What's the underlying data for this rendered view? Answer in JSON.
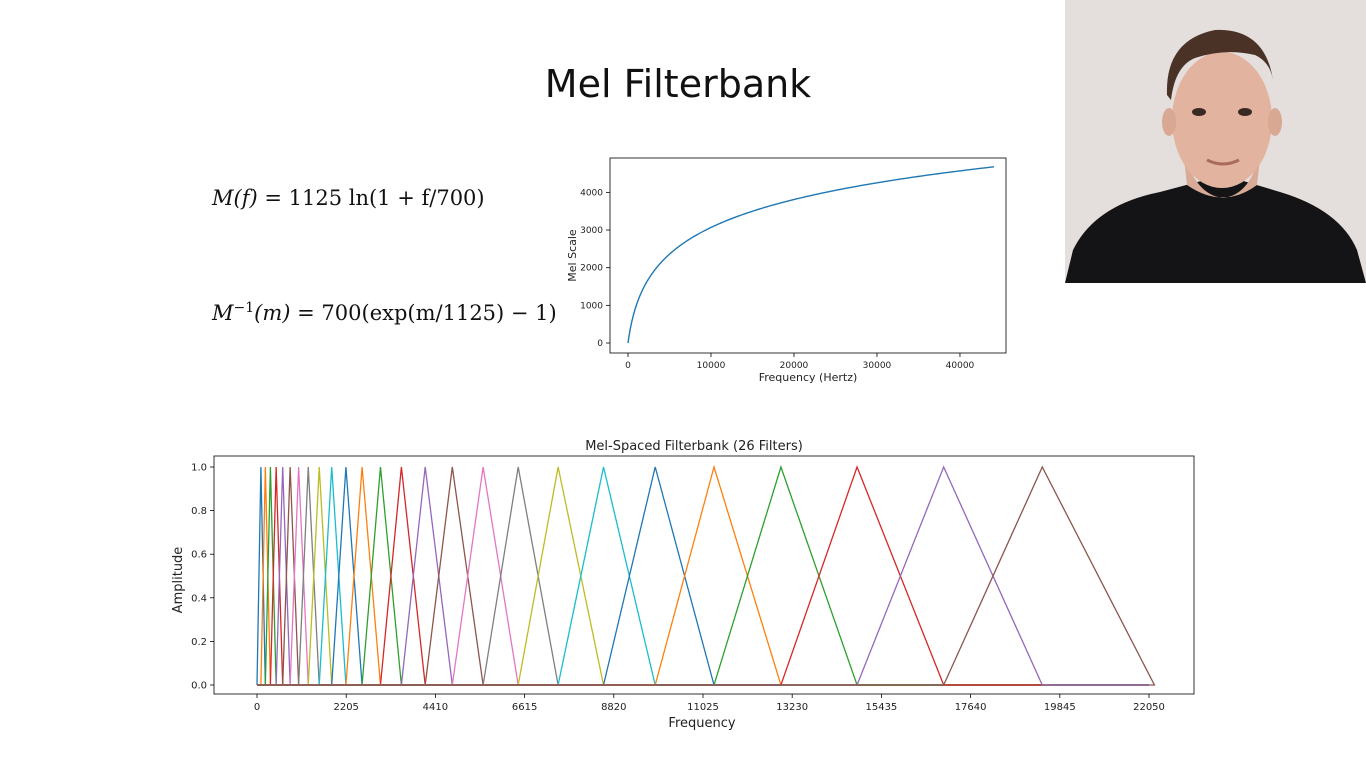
{
  "slide": {
    "title": "Mel Filterbank",
    "formula_mel": {
      "lhs": "M(f)",
      "rhs": "= 1125 ln(1 + f/700)"
    },
    "formula_inverse": {
      "lhs_base": "M",
      "lhs_sup": "−1",
      "lhs_arg": "(m)",
      "rhs": "= 700(exp(m/1125) − 1)"
    }
  },
  "chart_data": [
    {
      "type": "line",
      "title": "",
      "xlabel": "Frequency (Hertz)",
      "ylabel": "Mel Scale",
      "xlim": [
        0,
        44100
      ],
      "ylim": [
        0,
        4700
      ],
      "xticks": [
        "0",
        "10000",
        "20000",
        "30000",
        "40000"
      ],
      "yticks": [
        "0",
        "1000",
        "2000",
        "3000",
        "4000"
      ],
      "series": [
        {
          "color": "#1f77b4",
          "function": "1125*ln(1+f/700)",
          "x": [
            0,
            1000,
            2000,
            3000,
            5000,
            7500,
            10000,
            15000,
            20000,
            25000,
            30000,
            35000,
            40000,
            44100
          ]
        }
      ],
      "grid": false,
      "legend": "none"
    },
    {
      "type": "line",
      "title": "Mel-Spaced Filterbank (26 Filters)",
      "xlabel": "Frequency",
      "ylabel": "Amplitude",
      "xlim": [
        0,
        22050
      ],
      "ylim": [
        0,
        1.0
      ],
      "xticks": [
        "0",
        "2205",
        "4410",
        "6615",
        "8820",
        "11025",
        "13230",
        "15435",
        "17640",
        "19845",
        "22050"
      ],
      "yticks": [
        "0.0",
        "0.2",
        "0.4",
        "0.6",
        "0.8",
        "1.0"
      ],
      "filter_count": 26,
      "mel_range": [
        0,
        3923
      ],
      "colors": [
        "#1f77b4",
        "#ff7f0e",
        "#2ca02c",
        "#d62728",
        "#9467bd",
        "#8c564b",
        "#e377c2",
        "#7f7f7f",
        "#bcbd22",
        "#17becf"
      ],
      "grid": false,
      "legend": "none"
    }
  ],
  "webcam": {
    "shirt_color": "#141416",
    "background_color": "#e6e1df"
  }
}
